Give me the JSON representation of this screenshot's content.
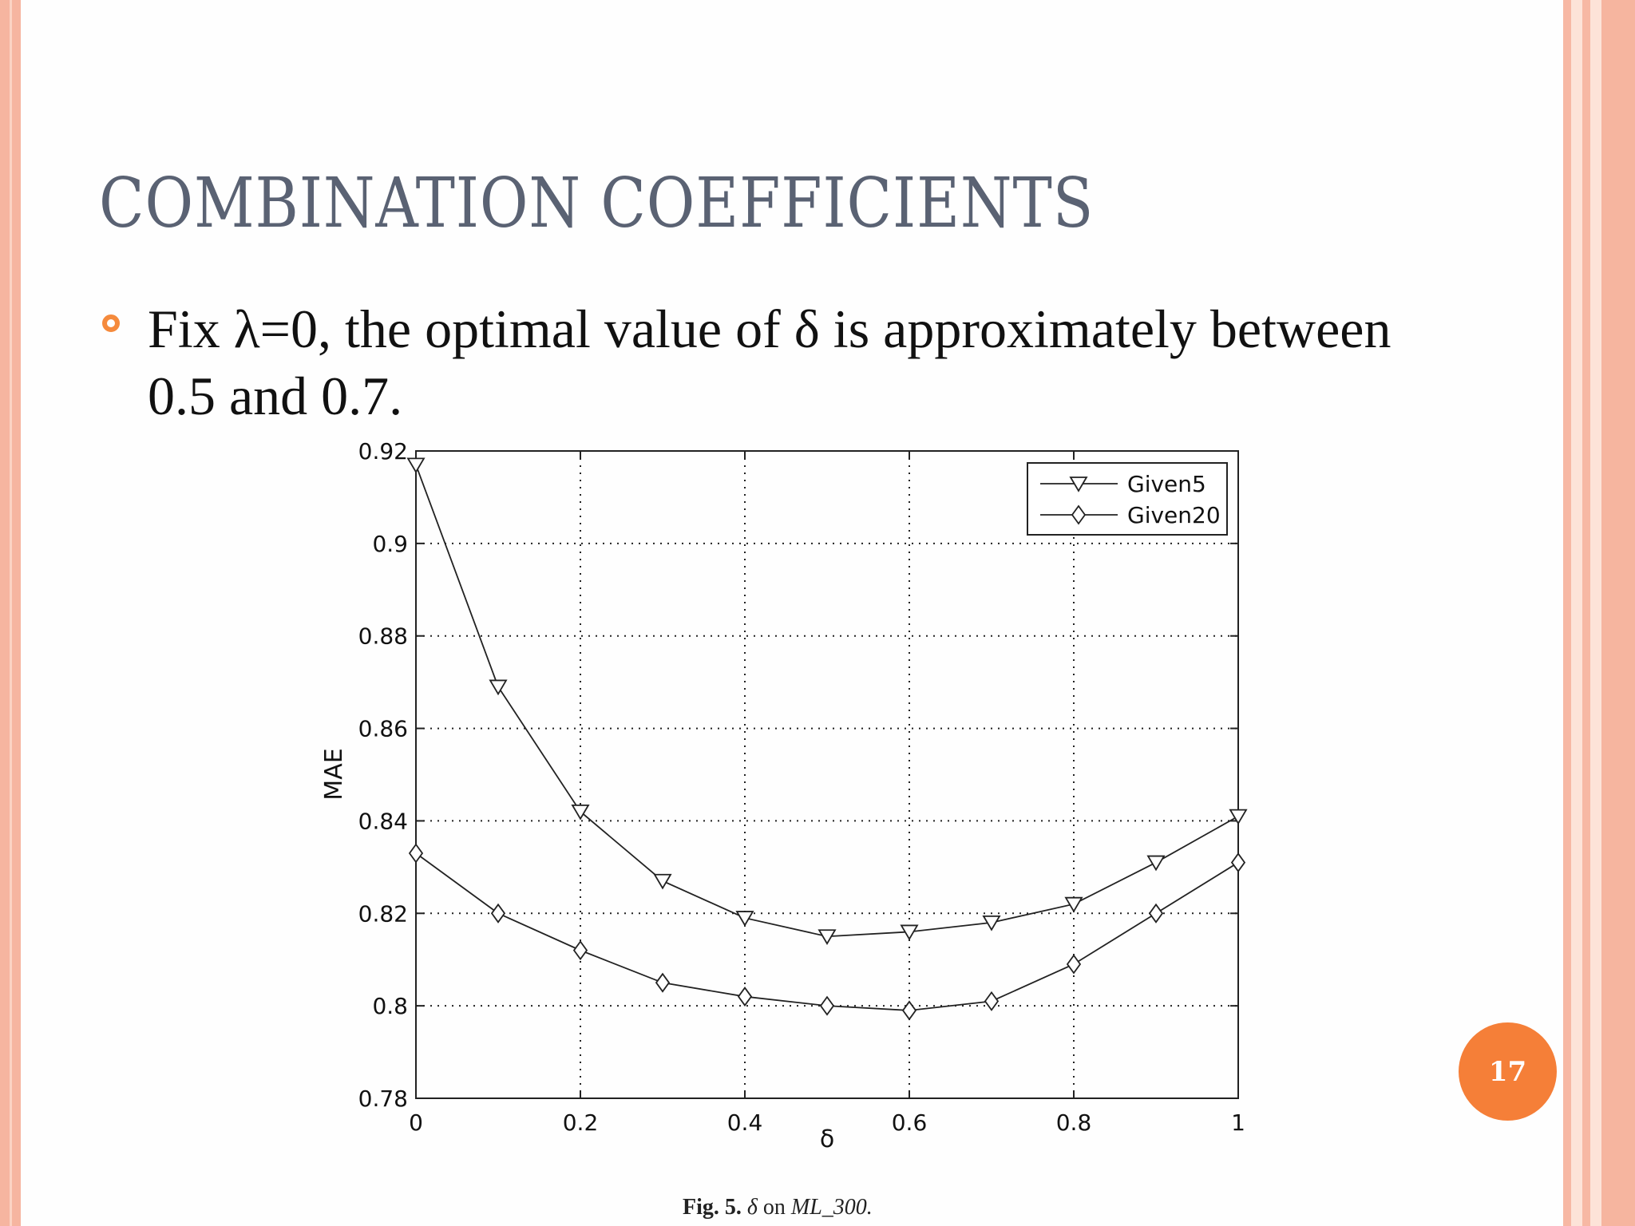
{
  "slide": {
    "title": "COMBINATION COEFFICIENTS",
    "bullet": "Fix λ=0, the optimal value of δ is approximately between 0.5 and 0.7.",
    "page_number": "17",
    "caption": {
      "label": "Fig. 5.",
      "symbol": "δ",
      "on": "on",
      "dataset": "ML_300."
    },
    "accent_color": "#f57f38",
    "border_color": "#f6b5a0"
  },
  "chart_data": {
    "type": "line",
    "xlabel": "δ",
    "ylabel": "MAE",
    "xlim": [
      0,
      1
    ],
    "ylim": [
      0.78,
      0.92
    ],
    "xticks": [
      "0",
      "0.2",
      "0.4",
      "0.6",
      "0.8",
      "1"
    ],
    "yticks": [
      "0.78",
      "0.8",
      "0.82",
      "0.84",
      "0.86",
      "0.88",
      "0.9",
      "0.92"
    ],
    "grid": true,
    "legend_position": "top-right",
    "x": [
      0,
      0.1,
      0.2,
      0.3,
      0.4,
      0.5,
      0.6,
      0.7,
      0.8,
      0.9,
      1.0
    ],
    "series": [
      {
        "name": "Given5",
        "marker": "triangle-down",
        "values": [
          0.917,
          0.869,
          0.842,
          0.827,
          0.819,
          0.815,
          0.816,
          0.818,
          0.822,
          0.831,
          0.841
        ]
      },
      {
        "name": "Given20",
        "marker": "diamond",
        "values": [
          0.833,
          0.82,
          0.812,
          0.805,
          0.802,
          0.8,
          0.799,
          0.801,
          0.809,
          0.82,
          0.831
        ]
      }
    ]
  }
}
